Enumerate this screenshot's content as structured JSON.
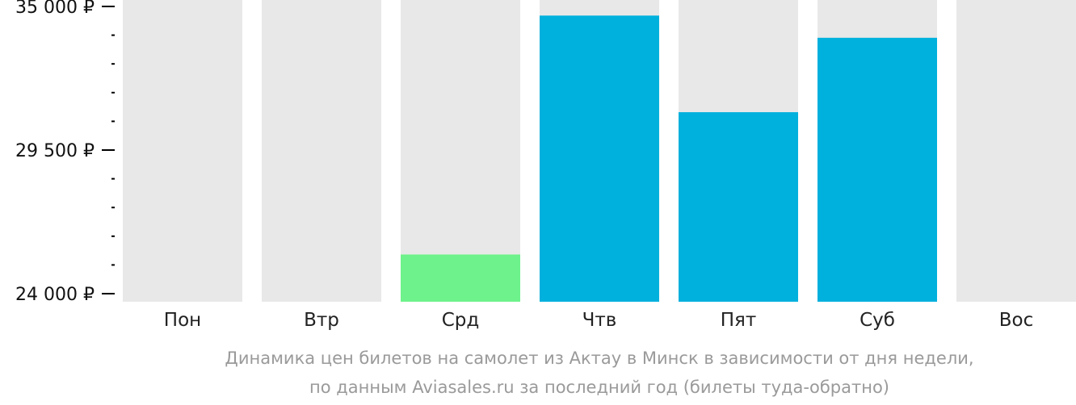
{
  "chart_data": {
    "type": "bar",
    "categories": [
      "Пон",
      "Втр",
      "Срд",
      "Чтв",
      "Пят",
      "Суб",
      "Вос"
    ],
    "values": [
      null,
      null,
      25500,
      34650,
      30950,
      33800,
      null
    ],
    "ylim": [
      24000,
      35000
    ],
    "y_ticks_major": [
      {
        "value": 35000,
        "label": "35 000 ₽"
      },
      {
        "value": 29500,
        "label": "29 500 ₽"
      },
      {
        "value": 24000,
        "label": "24 000 ₽"
      }
    ],
    "y_ticks_minor": [
      33900,
      32800,
      31700,
      30600,
      28400,
      27300,
      26200,
      25100
    ],
    "colors": {
      "background_bar": "#e8e8e8",
      "price_bar": "#00b0dd",
      "cheapest_bar": "#6ef28b",
      "axis": "#000000",
      "caption": "#9a9a9a"
    },
    "cheapest_category": "Срд",
    "caption_lines": [
      "Динамика цен билетов на самолет из Актау в Минск в зависимости от дня недели,",
      "по данным Aviasales.ru за последний год (билеты туда-обратно)"
    ],
    "grid": false,
    "legend": "none"
  }
}
